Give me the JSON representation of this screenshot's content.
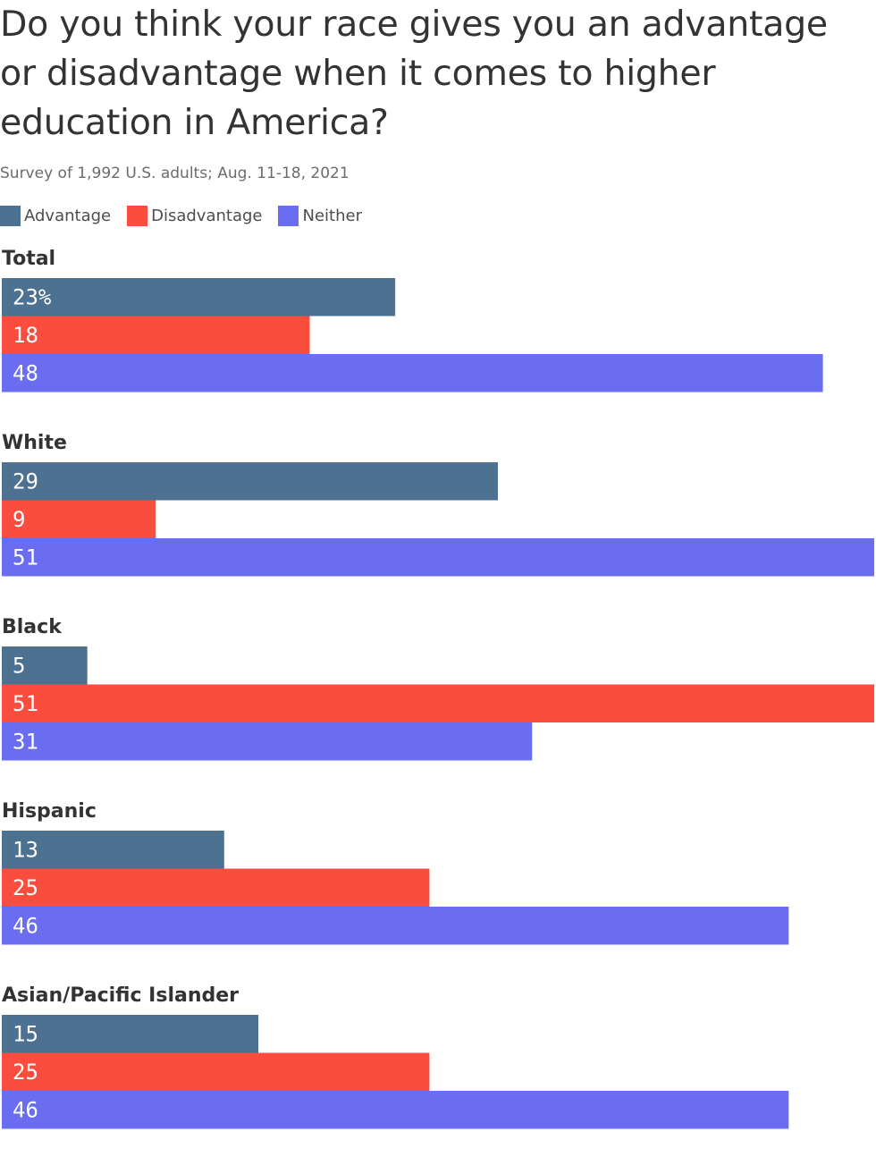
{
  "title": "Do you think your race gives you an advantage or disadvantage when it comes to higher education in America?",
  "subtitle": "Survey of 1,992 U.S. adults; Aug. 11-18, 2021",
  "colors": {
    "advantage": "#4c7191",
    "disadvantage": "#fb4d3d",
    "neither": "#6a6df0",
    "text": "#333333",
    "subtle_text": "#6b6b6b"
  },
  "legend": [
    {
      "label": "Advantage",
      "color": "#4c7191"
    },
    {
      "label": "Disadvantage",
      "color": "#fb4d3d"
    },
    {
      "label": "Neither",
      "color": "#6a6df0"
    }
  ],
  "chart_data": {
    "type": "bar",
    "orientation": "horizontal",
    "title": "Do you think your race gives you an advantage or disadvantage when it comes to higher education in America?",
    "subtitle": "Survey of 1,992 U.S. adults; Aug. 11-18, 2021",
    "categories": [
      "Total",
      "White",
      "Black",
      "Hispanic",
      "Asian/Pacific Islander"
    ],
    "series": [
      {
        "name": "Advantage",
        "color": "#4c7191",
        "values": [
          23,
          29,
          5,
          13,
          15
        ],
        "labels": [
          "23%",
          "29",
          "5",
          "13",
          "15"
        ]
      },
      {
        "name": "Disadvantage",
        "color": "#fb4d3d",
        "values": [
          18,
          9,
          51,
          25,
          25
        ],
        "labels": [
          "18",
          "9",
          "51",
          "25",
          "25"
        ]
      },
      {
        "name": "Neither",
        "color": "#6a6df0",
        "values": [
          48,
          51,
          31,
          46,
          46
        ],
        "labels": [
          "48",
          "51",
          "31",
          "46",
          "46"
        ]
      }
    ],
    "xlim": [
      0,
      51
    ],
    "grid": false,
    "legend_position": "top-left"
  }
}
